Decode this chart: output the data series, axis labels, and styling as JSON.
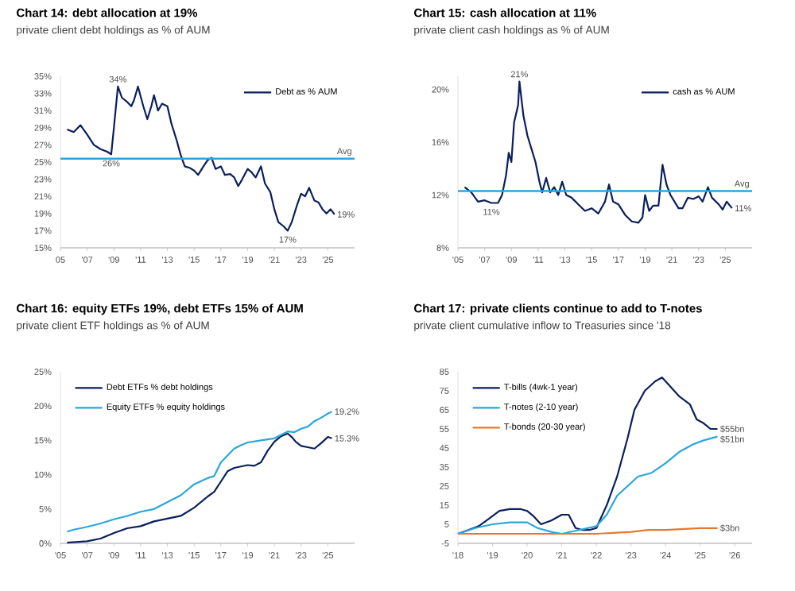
{
  "chart_data": [
    {
      "type": "line",
      "title": "Chart 14: debt allocation at 19%",
      "subtitle": "private client debt holdings as % of AUM",
      "legend": "top right",
      "xlim": [
        2005,
        2027
      ],
      "ylim": [
        15,
        35
      ],
      "xticks": [
        {
          "value": 2005,
          "label": "05"
        },
        {
          "value": 2007,
          "label": "'07"
        },
        {
          "value": 2009,
          "label": "'09"
        },
        {
          "value": 2011,
          "label": "'11"
        },
        {
          "value": 2013,
          "label": "'13"
        },
        {
          "value": 2015,
          "label": "'15"
        },
        {
          "value": 2017,
          "label": "'17"
        },
        {
          "value": 2019,
          "label": "'19"
        },
        {
          "value": 2021,
          "label": "'21"
        },
        {
          "value": 2023,
          "label": "'23"
        },
        {
          "value": 2025,
          "label": "'25"
        }
      ],
      "yticks": [
        {
          "value": 15,
          "label": "15%"
        },
        {
          "value": 17,
          "label": "17%"
        },
        {
          "value": 19,
          "label": "19%"
        },
        {
          "value": 21,
          "label": "21%"
        },
        {
          "value": 23,
          "label": "23%"
        },
        {
          "value": 25,
          "label": "25%"
        },
        {
          "value": 27,
          "label": "27%"
        },
        {
          "value": 29,
          "label": "29%"
        },
        {
          "value": 31,
          "label": "31%"
        },
        {
          "value": 33,
          "label": "33%"
        },
        {
          "value": 35,
          "label": "35%"
        }
      ],
      "series": [
        {
          "name": "Debt as % AUM",
          "color": "#0b1f5c",
          "x": [
            2005.5,
            2006.0,
            2006.5,
            2007.0,
            2007.5,
            2008.0,
            2008.5,
            2008.8,
            2009.0,
            2009.3,
            2009.6,
            2010.0,
            2010.3,
            2010.5,
            2010.8,
            2011.2,
            2011.5,
            2011.8,
            2012.0,
            2012.3,
            2012.6,
            2013.0,
            2013.3,
            2013.7,
            2014.0,
            2014.3,
            2014.7,
            2015.0,
            2015.3,
            2015.7,
            2016.0,
            2016.3,
            2016.6,
            2017.0,
            2017.3,
            2017.7,
            2018.0,
            2018.3,
            2018.6,
            2019.0,
            2019.3,
            2019.6,
            2020.0,
            2020.3,
            2020.7,
            2021.0,
            2021.3,
            2021.7,
            2022.0,
            2022.3,
            2022.7,
            2023.0,
            2023.3,
            2023.6,
            2024.0,
            2024.3,
            2024.6,
            2024.9,
            2025.2,
            2025.5
          ],
          "values": [
            28.8,
            28.5,
            29.3,
            28.2,
            27.0,
            26.5,
            26.2,
            25.9,
            29.0,
            33.8,
            32.5,
            32.0,
            31.5,
            32.2,
            33.8,
            31.5,
            30.0,
            31.5,
            32.8,
            31.0,
            31.8,
            31.5,
            29.5,
            27.5,
            25.8,
            24.5,
            24.3,
            24.0,
            23.5,
            24.5,
            25.2,
            25.5,
            24.2,
            24.5,
            23.5,
            23.6,
            23.2,
            22.2,
            23.0,
            24.2,
            23.8,
            23.2,
            24.5,
            22.5,
            21.5,
            19.5,
            18.0,
            17.5,
            17.0,
            18.0,
            20.0,
            21.3,
            21.0,
            22.0,
            20.5,
            20.3,
            19.5,
            19.0,
            19.5,
            18.9
          ]
        }
      ],
      "ref_lines": [
        {
          "axis": "y",
          "value": 25.4,
          "label": "Avg",
          "color": "#2aa6dc"
        }
      ],
      "annotations": [
        {
          "text": "34%",
          "x": 2009.3,
          "y": 33.8
        },
        {
          "text": "26%",
          "x": 2008.8,
          "y": 25.9
        },
        {
          "text": "17%",
          "x": 2022.0,
          "y": 17.0
        },
        {
          "text": "19%",
          "x": 2025.5,
          "y": 18.9
        }
      ]
    },
    {
      "type": "line",
      "title": "Chart 15: cash allocation at 11%",
      "subtitle": "private client cash holdings as % of AUM",
      "legend": "top right",
      "xlim": [
        2005,
        2027
      ],
      "ylim": [
        8,
        21
      ],
      "xticks": [
        {
          "value": 2005,
          "label": "'05"
        },
        {
          "value": 2007,
          "label": "'07"
        },
        {
          "value": 2009,
          "label": "'09"
        },
        {
          "value": 2011,
          "label": "'11"
        },
        {
          "value": 2013,
          "label": "'13"
        },
        {
          "value": 2015,
          "label": "'15"
        },
        {
          "value": 2017,
          "label": "'17"
        },
        {
          "value": 2019,
          "label": "'19"
        },
        {
          "value": 2021,
          "label": "'21"
        },
        {
          "value": 2023,
          "label": "'23"
        },
        {
          "value": 2025,
          "label": "'25"
        }
      ],
      "yticks": [
        {
          "value": 8,
          "label": "8%"
        },
        {
          "value": 12,
          "label": "12%"
        },
        {
          "value": 16,
          "label": "16%"
        },
        {
          "value": 20,
          "label": "20%"
        }
      ],
      "series": [
        {
          "name": "cash as % AUM",
          "color": "#0b1f5c",
          "x": [
            2005.5,
            2006.0,
            2006.5,
            2007.0,
            2007.5,
            2008.0,
            2008.3,
            2008.6,
            2008.8,
            2009.0,
            2009.2,
            2009.5,
            2009.6,
            2009.9,
            2010.2,
            2010.5,
            2010.8,
            2011.1,
            2011.3,
            2011.6,
            2011.9,
            2012.2,
            2012.5,
            2012.8,
            2013.1,
            2013.5,
            2014.0,
            2014.5,
            2015.0,
            2015.5,
            2016.0,
            2016.3,
            2016.6,
            2017.0,
            2017.5,
            2018.0,
            2018.5,
            2018.8,
            2019.0,
            2019.3,
            2019.6,
            2020.0,
            2020.3,
            2020.6,
            2020.9,
            2021.2,
            2021.5,
            2021.8,
            2022.2,
            2022.6,
            2023.0,
            2023.3,
            2023.7,
            2024.0,
            2024.5,
            2024.8,
            2025.1,
            2025.5
          ],
          "values": [
            12.6,
            12.2,
            11.5,
            11.6,
            11.4,
            11.4,
            12.0,
            13.5,
            15.2,
            14.5,
            17.5,
            18.8,
            20.6,
            18.0,
            16.5,
            15.5,
            14.5,
            13.0,
            12.2,
            13.3,
            12.2,
            12.6,
            12.0,
            13.0,
            12.0,
            11.8,
            11.3,
            10.8,
            11.0,
            10.6,
            11.5,
            12.8,
            11.5,
            11.3,
            10.5,
            10.0,
            9.9,
            10.3,
            12.0,
            10.8,
            11.2,
            11.2,
            14.3,
            12.8,
            12.0,
            11.5,
            11.0,
            11.0,
            11.8,
            11.7,
            11.9,
            11.5,
            12.6,
            11.8,
            11.3,
            10.9,
            11.5,
            11.0
          ]
        }
      ],
      "ref_lines": [
        {
          "axis": "y",
          "value": 12.3,
          "label": "Avg",
          "color": "#2aa6dc"
        }
      ],
      "annotations": [
        {
          "text": "21%",
          "x": 2009.6,
          "y": 20.6
        },
        {
          "text": "11%",
          "x": 2007.5,
          "y": 11.4
        },
        {
          "text": "11%",
          "x": 2025.5,
          "y": 11.0
        }
      ]
    },
    {
      "type": "line",
      "title": "Chart 16: equity ETFs 19%, debt ETFs 15% of AUM",
      "subtitle": "private client ETF holdings as % of AUM",
      "legend": "top left",
      "xlim": [
        2005,
        2027
      ],
      "ylim": [
        0,
        25
      ],
      "xticks": [
        {
          "value": 2005,
          "label": "'05"
        },
        {
          "value": 2007,
          "label": "'07"
        },
        {
          "value": 2009,
          "label": "'09"
        },
        {
          "value": 2011,
          "label": "'11"
        },
        {
          "value": 2013,
          "label": "'13"
        },
        {
          "value": 2015,
          "label": "'15"
        },
        {
          "value": 2017,
          "label": "'17"
        },
        {
          "value": 2019,
          "label": "'19"
        },
        {
          "value": 2021,
          "label": "'21"
        },
        {
          "value": 2023,
          "label": "'23"
        },
        {
          "value": 2025,
          "label": "'25"
        }
      ],
      "yticks": [
        {
          "value": 0,
          "label": "0%"
        },
        {
          "value": 5,
          "label": "5%"
        },
        {
          "value": 10,
          "label": "10%"
        },
        {
          "value": 15,
          "label": "15%"
        },
        {
          "value": 20,
          "label": "20%"
        },
        {
          "value": 25,
          "label": "25%"
        }
      ],
      "series": [
        {
          "name": "Debt ETFs % debt holdings",
          "color": "#0b1f5c",
          "x": [
            2005.5,
            2007,
            2008,
            2009,
            2010,
            2011,
            2012,
            2013,
            2014,
            2015,
            2016,
            2016.5,
            2017,
            2017.5,
            2018,
            2018.5,
            2019,
            2019.5,
            2020,
            2020.5,
            2021,
            2021.5,
            2022,
            2022.3,
            2022.6,
            2023,
            2023.5,
            2024,
            2024.5,
            2025,
            2025.3
          ],
          "values": [
            0.1,
            0.3,
            0.7,
            1.5,
            2.2,
            2.5,
            3.2,
            3.6,
            4.0,
            5.2,
            6.8,
            7.5,
            9.0,
            10.5,
            11.0,
            11.2,
            11.4,
            11.3,
            11.8,
            13.5,
            14.8,
            15.6,
            16.0,
            15.5,
            14.8,
            14.2,
            14.0,
            13.8,
            14.6,
            15.5,
            15.3
          ],
          "value_labels": [
            null,
            null,
            null,
            null,
            null,
            null,
            null,
            null,
            null,
            null,
            null,
            null,
            null,
            null,
            null,
            null,
            null,
            null,
            null,
            null,
            null,
            null,
            null,
            null,
            null,
            null,
            null,
            null,
            null,
            null,
            "15.3%"
          ]
        },
        {
          "name": "Equity ETFs % equity holdings",
          "color": "#2aa6dc",
          "x": [
            2005.5,
            2006,
            2007,
            2008,
            2009,
            2010,
            2011,
            2012,
            2013,
            2014,
            2015,
            2016,
            2016.5,
            2017,
            2018,
            2018.5,
            2019,
            2020,
            2021,
            2021.5,
            2022,
            2022.5,
            2023,
            2023.5,
            2024,
            2024.5,
            2025,
            2025.3
          ],
          "values": [
            1.7,
            2.0,
            2.4,
            2.9,
            3.5,
            4.0,
            4.6,
            5.0,
            6.0,
            7.0,
            8.6,
            9.5,
            9.8,
            11.8,
            13.8,
            14.3,
            14.7,
            15.0,
            15.3,
            15.8,
            16.3,
            16.2,
            16.7,
            17.0,
            17.8,
            18.3,
            18.9,
            19.2
          ],
          "value_labels": [
            null,
            null,
            null,
            null,
            null,
            null,
            null,
            null,
            null,
            null,
            null,
            null,
            null,
            null,
            null,
            null,
            null,
            null,
            null,
            null,
            null,
            null,
            null,
            null,
            null,
            null,
            null,
            "19.2%"
          ]
        }
      ]
    },
    {
      "type": "line",
      "title": "Chart 17: private clients continue to add to T-notes",
      "subtitle": "private client cumulative inflow to Treasuries since '18",
      "legend": "top left",
      "xlim": [
        2018,
        2026.5
      ],
      "ylim": [
        -5,
        85
      ],
      "xticks": [
        {
          "value": 2018,
          "label": "'18"
        },
        {
          "value": 2019,
          "label": "'19"
        },
        {
          "value": 2020,
          "label": "'20"
        },
        {
          "value": 2021,
          "label": "'21"
        },
        {
          "value": 2022,
          "label": "'22"
        },
        {
          "value": 2023,
          "label": "'23"
        },
        {
          "value": 2024,
          "label": "'24"
        },
        {
          "value": 2025,
          "label": "'25"
        },
        {
          "value": 2026,
          "label": "'26"
        }
      ],
      "yticks": [
        -5,
        5,
        15,
        25,
        35,
        45,
        55,
        65,
        75,
        85
      ],
      "series": [
        {
          "name": "T-bills (4wk-1 year)",
          "color": "#0b1f5c",
          "x": [
            2018.0,
            2018.3,
            2018.6,
            2018.9,
            2019.2,
            2019.5,
            2019.8,
            2020.0,
            2020.2,
            2020.4,
            2020.7,
            2021.0,
            2021.2,
            2021.4,
            2021.6,
            2021.8,
            2022.0,
            2022.3,
            2022.6,
            2022.9,
            2023.1,
            2023.4,
            2023.7,
            2023.9,
            2024.1,
            2024.4,
            2024.7,
            2024.9,
            2025.1,
            2025.3,
            2025.5
          ],
          "values": [
            0,
            2,
            4,
            8,
            12,
            13,
            13,
            12,
            9,
            5,
            7,
            10,
            10,
            3,
            2,
            2,
            3,
            15,
            30,
            50,
            65,
            75,
            80,
            82,
            78,
            72,
            68,
            60,
            58,
            55,
            55
          ],
          "value_labels": [
            null,
            null,
            null,
            null,
            null,
            null,
            null,
            null,
            null,
            null,
            null,
            null,
            null,
            null,
            null,
            null,
            null,
            null,
            null,
            null,
            null,
            null,
            null,
            null,
            null,
            null,
            null,
            null,
            null,
            null,
            "$55bn"
          ]
        },
        {
          "name": "T-notes (2-10 year)",
          "color": "#2aa6dc",
          "x": [
            2018.0,
            2018.5,
            2019.0,
            2019.5,
            2020.0,
            2020.3,
            2020.7,
            2021.0,
            2021.5,
            2022.0,
            2022.3,
            2022.6,
            2022.9,
            2023.2,
            2023.6,
            2024.0,
            2024.4,
            2024.8,
            2025.1,
            2025.5
          ],
          "values": [
            0,
            3,
            5,
            6,
            6,
            3,
            1,
            0,
            2,
            4,
            10,
            20,
            25,
            30,
            32,
            37,
            43,
            47,
            49,
            51
          ],
          "value_labels": [
            null,
            null,
            null,
            null,
            null,
            null,
            null,
            null,
            null,
            null,
            null,
            null,
            null,
            null,
            null,
            null,
            null,
            null,
            null,
            "$51bn"
          ]
        },
        {
          "name": "T-bonds (20-30 year)",
          "color": "#e8792b",
          "x": [
            2018.0,
            2020.0,
            2022.0,
            2023.0,
            2023.5,
            2024.0,
            2025.0,
            2025.5
          ],
          "values": [
            0,
            0,
            0,
            1,
            2,
            2,
            3,
            3
          ],
          "value_labels": [
            null,
            null,
            null,
            null,
            null,
            null,
            null,
            "$3bn"
          ]
        }
      ]
    }
  ]
}
